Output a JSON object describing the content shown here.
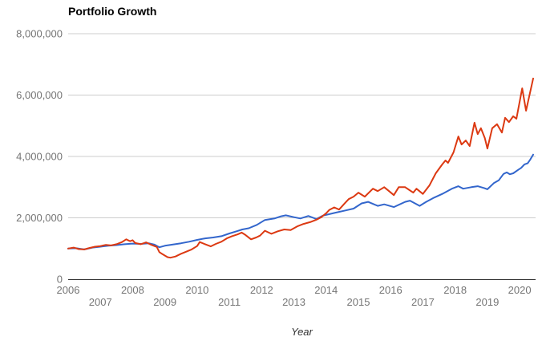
{
  "chart": {
    "title": "Portfolio Growth",
    "x_axis_label": "Year"
  },
  "chart_data": {
    "type": "line",
    "title": "Portfolio Growth",
    "xlabel": "Year",
    "ylabel": "",
    "xlim": [
      2006,
      2020.5
    ],
    "ylim": [
      0,
      8000000
    ],
    "x_ticks": [
      2006,
      2007,
      2008,
      2009,
      2010,
      2011,
      2012,
      2013,
      2014,
      2015,
      2016,
      2017,
      2018,
      2019,
      2020
    ],
    "y_ticks": [
      0,
      2000000,
      4000000,
      6000000,
      8000000
    ],
    "y_tick_labels": [
      "0",
      "2,000,000",
      "4,000,000",
      "6,000,000",
      "8,000,000"
    ],
    "grid": "horizontal",
    "legend": "none",
    "axis_color": "#333333",
    "gridline_color": "#cccccc",
    "tick_label_color": "#757575",
    "series": [
      {
        "name": "blue",
        "color": "#3366cc",
        "points": [
          [
            2006.0,
            1000000
          ],
          [
            2006.25,
            1010000
          ],
          [
            2006.5,
            970000
          ],
          [
            2006.75,
            1030000
          ],
          [
            2007.0,
            1060000
          ],
          [
            2007.25,
            1090000
          ],
          [
            2007.5,
            1110000
          ],
          [
            2007.75,
            1140000
          ],
          [
            2008.0,
            1160000
          ],
          [
            2008.25,
            1150000
          ],
          [
            2008.5,
            1170000
          ],
          [
            2008.67,
            1130000
          ],
          [
            2008.83,
            1040000
          ],
          [
            2009.0,
            1090000
          ],
          [
            2009.25,
            1130000
          ],
          [
            2009.5,
            1170000
          ],
          [
            2009.75,
            1220000
          ],
          [
            2010.0,
            1280000
          ],
          [
            2010.25,
            1330000
          ],
          [
            2010.5,
            1360000
          ],
          [
            2010.75,
            1400000
          ],
          [
            2011.0,
            1490000
          ],
          [
            2011.25,
            1570000
          ],
          [
            2011.4,
            1620000
          ],
          [
            2011.6,
            1660000
          ],
          [
            2011.85,
            1770000
          ],
          [
            2012.1,
            1930000
          ],
          [
            2012.4,
            1980000
          ],
          [
            2012.6,
            2050000
          ],
          [
            2012.75,
            2080000
          ],
          [
            2013.0,
            2020000
          ],
          [
            2013.2,
            1980000
          ],
          [
            2013.45,
            2060000
          ],
          [
            2013.7,
            1960000
          ],
          [
            2013.9,
            2070000
          ],
          [
            2014.1,
            2120000
          ],
          [
            2014.3,
            2170000
          ],
          [
            2014.6,
            2240000
          ],
          [
            2014.85,
            2300000
          ],
          [
            2015.1,
            2470000
          ],
          [
            2015.3,
            2520000
          ],
          [
            2015.6,
            2390000
          ],
          [
            2015.8,
            2440000
          ],
          [
            2016.1,
            2350000
          ],
          [
            2016.45,
            2520000
          ],
          [
            2016.6,
            2560000
          ],
          [
            2016.9,
            2390000
          ],
          [
            2017.1,
            2520000
          ],
          [
            2017.35,
            2660000
          ],
          [
            2017.6,
            2780000
          ],
          [
            2017.9,
            2950000
          ],
          [
            2018.1,
            3030000
          ],
          [
            2018.25,
            2950000
          ],
          [
            2018.5,
            3000000
          ],
          [
            2018.7,
            3030000
          ],
          [
            2018.9,
            2970000
          ],
          [
            2019.0,
            2930000
          ],
          [
            2019.2,
            3130000
          ],
          [
            2019.35,
            3220000
          ],
          [
            2019.5,
            3430000
          ],
          [
            2019.6,
            3480000
          ],
          [
            2019.7,
            3420000
          ],
          [
            2019.8,
            3450000
          ],
          [
            2019.95,
            3560000
          ],
          [
            2020.05,
            3630000
          ],
          [
            2020.15,
            3740000
          ],
          [
            2020.25,
            3780000
          ],
          [
            2020.33,
            3900000
          ],
          [
            2020.42,
            4060000
          ]
        ]
      },
      {
        "name": "red",
        "color": "#dc3912",
        "points": [
          [
            2006.0,
            1000000
          ],
          [
            2006.17,
            1030000
          ],
          [
            2006.33,
            980000
          ],
          [
            2006.5,
            970000
          ],
          [
            2006.67,
            1020000
          ],
          [
            2006.83,
            1060000
          ],
          [
            2007.0,
            1080000
          ],
          [
            2007.17,
            1120000
          ],
          [
            2007.33,
            1100000
          ],
          [
            2007.5,
            1140000
          ],
          [
            2007.67,
            1210000
          ],
          [
            2007.8,
            1300000
          ],
          [
            2007.92,
            1240000
          ],
          [
            2008.0,
            1270000
          ],
          [
            2008.08,
            1180000
          ],
          [
            2008.25,
            1140000
          ],
          [
            2008.42,
            1200000
          ],
          [
            2008.58,
            1120000
          ],
          [
            2008.75,
            1050000
          ],
          [
            2008.83,
            880000
          ],
          [
            2008.92,
            820000
          ],
          [
            2009.08,
            720000
          ],
          [
            2009.17,
            700000
          ],
          [
            2009.33,
            740000
          ],
          [
            2009.5,
            830000
          ],
          [
            2009.67,
            900000
          ],
          [
            2009.83,
            970000
          ],
          [
            2010.0,
            1080000
          ],
          [
            2010.08,
            1210000
          ],
          [
            2010.25,
            1140000
          ],
          [
            2010.42,
            1070000
          ],
          [
            2010.58,
            1150000
          ],
          [
            2010.75,
            1220000
          ],
          [
            2010.92,
            1330000
          ],
          [
            2011.08,
            1400000
          ],
          [
            2011.25,
            1460000
          ],
          [
            2011.38,
            1520000
          ],
          [
            2011.5,
            1440000
          ],
          [
            2011.67,
            1300000
          ],
          [
            2011.83,
            1360000
          ],
          [
            2011.95,
            1420000
          ],
          [
            2012.1,
            1580000
          ],
          [
            2012.3,
            1480000
          ],
          [
            2012.5,
            1560000
          ],
          [
            2012.7,
            1620000
          ],
          [
            2012.9,
            1600000
          ],
          [
            2013.1,
            1720000
          ],
          [
            2013.3,
            1800000
          ],
          [
            2013.5,
            1860000
          ],
          [
            2013.7,
            1940000
          ],
          [
            2013.85,
            2020000
          ],
          [
            2014.0,
            2150000
          ],
          [
            2014.1,
            2260000
          ],
          [
            2014.25,
            2340000
          ],
          [
            2014.4,
            2270000
          ],
          [
            2014.6,
            2500000
          ],
          [
            2014.7,
            2610000
          ],
          [
            2014.85,
            2690000
          ],
          [
            2015.0,
            2820000
          ],
          [
            2015.2,
            2690000
          ],
          [
            2015.45,
            2950000
          ],
          [
            2015.6,
            2870000
          ],
          [
            2015.8,
            3000000
          ],
          [
            2015.95,
            2870000
          ],
          [
            2016.1,
            2740000
          ],
          [
            2016.25,
            3000000
          ],
          [
            2016.45,
            3000000
          ],
          [
            2016.7,
            2820000
          ],
          [
            2016.8,
            2950000
          ],
          [
            2017.0,
            2780000
          ],
          [
            2017.2,
            3050000
          ],
          [
            2017.4,
            3450000
          ],
          [
            2017.6,
            3740000
          ],
          [
            2017.7,
            3870000
          ],
          [
            2017.78,
            3790000
          ],
          [
            2017.95,
            4130000
          ],
          [
            2018.1,
            4650000
          ],
          [
            2018.2,
            4390000
          ],
          [
            2018.33,
            4520000
          ],
          [
            2018.45,
            4340000
          ],
          [
            2018.6,
            5100000
          ],
          [
            2018.7,
            4730000
          ],
          [
            2018.8,
            4920000
          ],
          [
            2018.92,
            4600000
          ],
          [
            2019.0,
            4260000
          ],
          [
            2019.15,
            4920000
          ],
          [
            2019.3,
            5050000
          ],
          [
            2019.45,
            4780000
          ],
          [
            2019.55,
            5260000
          ],
          [
            2019.67,
            5120000
          ],
          [
            2019.8,
            5310000
          ],
          [
            2019.9,
            5230000
          ],
          [
            2020.08,
            6220000
          ],
          [
            2020.2,
            5490000
          ],
          [
            2020.42,
            6540000
          ]
        ]
      }
    ]
  }
}
